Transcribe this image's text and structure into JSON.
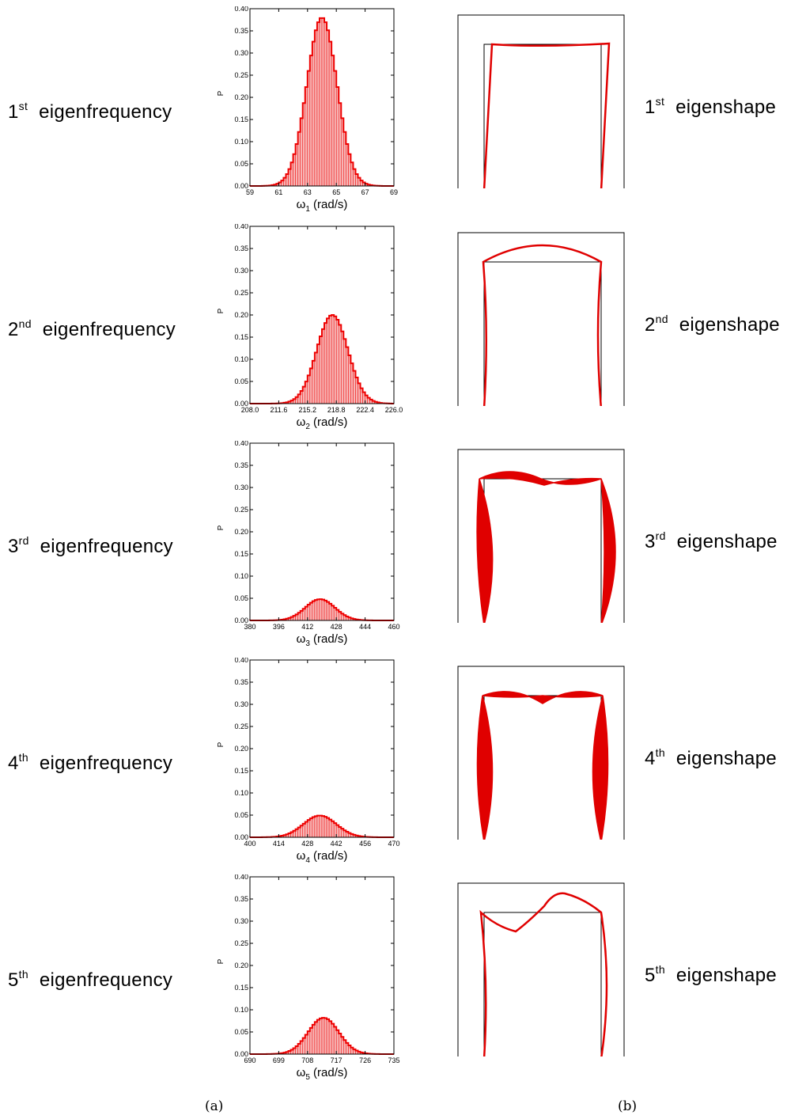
{
  "rows": [
    {
      "ord": "1",
      "sup": "st",
      "freq_label": "eigenfrequency",
      "shape_label": "eigenshape"
    },
    {
      "ord": "2",
      "sup": "nd",
      "freq_label": "eigenfrequency",
      "shape_label": "eigenshape"
    },
    {
      "ord": "3",
      "sup": "rd",
      "freq_label": "eigenfrequency",
      "shape_label": "eigenshape"
    },
    {
      "ord": "4",
      "sup": "th",
      "freq_label": "eigenfrequency",
      "shape_label": "eigenshape"
    },
    {
      "ord": "5",
      "sup": "th",
      "freq_label": "eigenfrequency",
      "shape_label": "eigenshape"
    }
  ],
  "captions": {
    "a": "(a)",
    "b": "(b)"
  },
  "chart_data": [
    {
      "type": "bar",
      "ylabel": "P",
      "xlabel": "ω",
      "xsub": "1",
      "xunit": "(rad/s)",
      "xlim": [
        59,
        69
      ],
      "ylim": [
        0,
        0.4
      ],
      "xticks": [
        "59",
        "61",
        "63",
        "65",
        "67",
        "69"
      ],
      "yticks": [
        "0.00",
        "0.05",
        "0.10",
        "0.15",
        "0.20",
        "0.25",
        "0.30",
        "0.35",
        "0.40"
      ],
      "distribution": {
        "mean": 64.0,
        "peak": 0.38,
        "sd": 1.05
      },
      "color": "#ee0000"
    },
    {
      "type": "bar",
      "ylabel": "P",
      "xlabel": "ω",
      "xsub": "2",
      "xunit": "(rad/s)",
      "xlim": [
        208.0,
        226.0
      ],
      "ylim": [
        0,
        0.4
      ],
      "xticks": [
        "208.0",
        "211.6",
        "215.2",
        "218.8",
        "222.4",
        "226.0"
      ],
      "yticks": [
        "0.00",
        "0.05",
        "0.10",
        "0.15",
        "0.20",
        "0.25",
        "0.30",
        "0.35",
        "0.40"
      ],
      "distribution": {
        "mean": 218.3,
        "peak": 0.2,
        "sd": 1.95
      },
      "color": "#ee0000"
    },
    {
      "type": "bar",
      "ylabel": "P",
      "xlabel": "ω",
      "xsub": "3",
      "xunit": "(rad/s)",
      "xlim": [
        380,
        460
      ],
      "ylim": [
        0,
        0.4
      ],
      "xticks": [
        "380",
        "396",
        "412",
        "428",
        "444",
        "460"
      ],
      "yticks": [
        "0.00",
        "0.05",
        "0.10",
        "0.15",
        "0.20",
        "0.25",
        "0.30",
        "0.35",
        "0.40"
      ],
      "distribution": {
        "mean": 419,
        "peak": 0.048,
        "sd": 8.2
      },
      "color": "#ee0000"
    },
    {
      "type": "bar",
      "ylabel": "P",
      "xlabel": "ω",
      "xsub": "4",
      "xunit": "(rad/s)",
      "xlim": [
        400,
        470
      ],
      "ylim": [
        0,
        0.4
      ],
      "xticks": [
        "400",
        "414",
        "428",
        "442",
        "456",
        "470"
      ],
      "yticks": [
        "0.00",
        "0.05",
        "0.10",
        "0.15",
        "0.20",
        "0.25",
        "0.30",
        "0.35",
        "0.40"
      ],
      "distribution": {
        "mean": 434,
        "peak": 0.049,
        "sd": 8.0
      },
      "color": "#ee0000"
    },
    {
      "type": "bar",
      "ylabel": "P",
      "xlabel": "ω",
      "xsub": "5",
      "xunit": "(rad/s)",
      "xlim": [
        690,
        735
      ],
      "ylim": [
        0,
        0.4
      ],
      "xticks": [
        "690",
        "699",
        "708",
        "717",
        "726",
        "735"
      ],
      "yticks": [
        "0.00",
        "0.05",
        "0.10",
        "0.15",
        "0.20",
        "0.25",
        "0.30",
        "0.35",
        "0.40"
      ],
      "distribution": {
        "mean": 713,
        "peak": 0.082,
        "sd": 4.8
      },
      "color": "#ee0000"
    }
  ]
}
